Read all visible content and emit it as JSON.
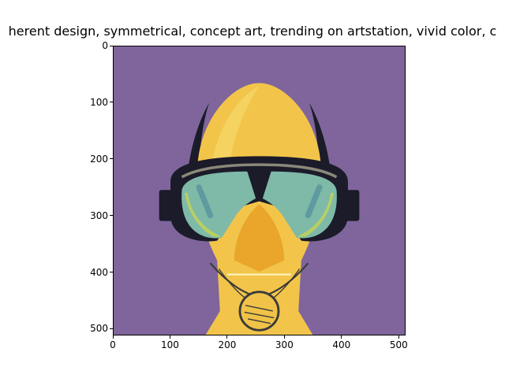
{
  "figure": {
    "title": "herent design, symmetrical,  concept art, trending on artstation, vivid color, c",
    "x_ticks": [
      "0",
      "100",
      "200",
      "300",
      "400",
      "500"
    ],
    "y_ticks": [
      "0",
      "100",
      "200",
      "300",
      "400",
      "500"
    ],
    "background_color": "#7f659c"
  },
  "artwork": {
    "subject": "symmetrical yellow figure wearing goggles and respirator mask",
    "colors": {
      "face": "#f2c54a",
      "face_shadow": "#e9a62a",
      "goggle_strap": "#1b1b2a",
      "lens": "#7fb9a8",
      "lens_edge": "#b8cf63",
      "mask_outline": "#3a3a3a"
    }
  }
}
